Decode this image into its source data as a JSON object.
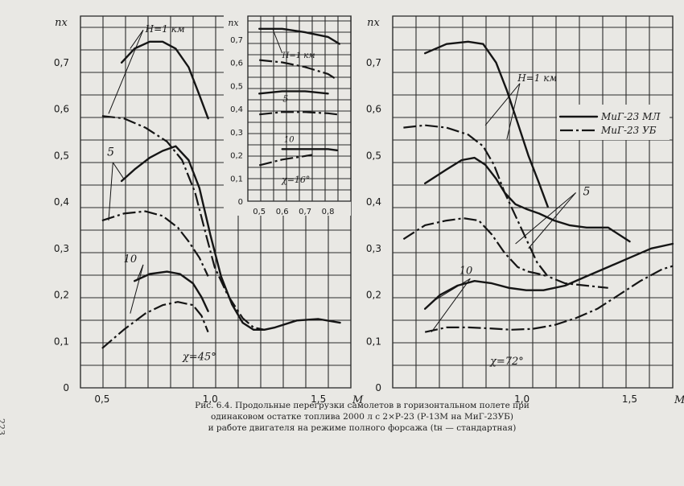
{
  "page_number": "223",
  "caption": {
    "line1": "Рис. 6.4. Продольные перегрузки самолетов в горизонтальном полете при",
    "line2": "одинаковом остатке топлива 2000 л с 2×Р-23 (Р-13М на МиГ-23УБ)",
    "line3": "и работе двигателя на режиме полного форсажа (tн — стандартная)"
  },
  "legend": {
    "solid": "МиГ-23 МЛ",
    "dashdot": "МиГ-23 УБ"
  },
  "chart_data": [
    {
      "type": "line",
      "id": "sweep45",
      "ylabel": "nx",
      "xlabel": "M",
      "annotation": "χ=45°",
      "xlim": [
        0.4,
        1.65
      ],
      "ylim": [
        0,
        0.8
      ],
      "xticks": [
        "0,5",
        "1,0",
        "1,5"
      ],
      "yticks": [
        "0",
        "0,1",
        "0,2",
        "0,3",
        "0,4",
        "0,5",
        "0,6",
        "0,7"
      ],
      "labels": {
        "h1": "H=1 км",
        "h5": "5",
        "h10": "10"
      },
      "series": [
        {
          "style": "solid",
          "x": [
            0.59,
            0.65,
            0.72,
            0.78,
            0.84,
            0.9,
            0.95,
            0.99
          ],
          "y": [
            0.7,
            0.73,
            0.745,
            0.745,
            0.73,
            0.69,
            0.63,
            0.58
          ]
        },
        {
          "style": "dashdot",
          "x": [
            0.5,
            0.6,
            0.7,
            0.8,
            0.87,
            0.93,
            0.98,
            1.02,
            1.08,
            1.15,
            1.2,
            1.25
          ],
          "y": [
            0.585,
            0.58,
            0.56,
            0.53,
            0.49,
            0.42,
            0.33,
            0.26,
            0.2,
            0.15,
            0.13,
            0.125
          ]
        },
        {
          "style": "solid",
          "x": [
            0.59,
            0.65,
            0.72,
            0.78,
            0.84,
            0.9,
            0.95,
            1.0,
            1.05,
            1.1,
            1.15,
            1.2,
            1.25,
            1.3,
            1.4,
            1.5,
            1.6
          ],
          "y": [
            0.445,
            0.47,
            0.495,
            0.51,
            0.52,
            0.49,
            0.43,
            0.33,
            0.24,
            0.18,
            0.14,
            0.125,
            0.125,
            0.13,
            0.145,
            0.148,
            0.14
          ]
        },
        {
          "style": "dashdot",
          "x": [
            0.5,
            0.6,
            0.7,
            0.78,
            0.85,
            0.9,
            0.95,
            0.99
          ],
          "y": [
            0.36,
            0.375,
            0.38,
            0.37,
            0.345,
            0.315,
            0.28,
            0.24
          ]
        },
        {
          "style": "solid",
          "x": [
            0.65,
            0.72,
            0.8,
            0.86,
            0.92,
            0.96,
            0.99
          ],
          "y": [
            0.23,
            0.245,
            0.25,
            0.245,
            0.225,
            0.195,
            0.165
          ]
        },
        {
          "style": "dashdot",
          "x": [
            0.5,
            0.6,
            0.7,
            0.78,
            0.85,
            0.92,
            0.96,
            0.99
          ],
          "y": [
            0.085,
            0.125,
            0.16,
            0.178,
            0.185,
            0.178,
            0.155,
            0.12
          ]
        }
      ]
    },
    {
      "type": "line",
      "id": "inset16",
      "ylabel": "nx",
      "annotation": "χ=16°",
      "xlim": [
        0.45,
        0.9
      ],
      "ylim": [
        0,
        0.8
      ],
      "xticks": [
        "0,5",
        "0,6",
        "0,7",
        "0,8"
      ],
      "yticks": [
        "0",
        "0,1",
        "0,2",
        "0,3",
        "0,4",
        "0,5",
        "0,6",
        "0,7"
      ],
      "labels": {
        "h1": "H=1 км",
        "h5": "5",
        "h10": "10"
      },
      "series": [
        {
          "style": "solid",
          "x": [
            0.5,
            0.6,
            0.7,
            0.8,
            0.85
          ],
          "y": [
            0.745,
            0.745,
            0.73,
            0.71,
            0.68
          ]
        },
        {
          "style": "dashdot",
          "x": [
            0.5,
            0.6,
            0.7,
            0.8,
            0.84
          ],
          "y": [
            0.61,
            0.6,
            0.58,
            0.55,
            0.525
          ]
        },
        {
          "style": "solid",
          "x": [
            0.5,
            0.6,
            0.7,
            0.8
          ],
          "y": [
            0.465,
            0.475,
            0.475,
            0.465
          ]
        },
        {
          "style": "dashdot",
          "x": [
            0.5,
            0.6,
            0.7,
            0.8,
            0.84
          ],
          "y": [
            0.375,
            0.385,
            0.385,
            0.38,
            0.375
          ]
        },
        {
          "style": "solid",
          "x": [
            0.6,
            0.7,
            0.8,
            0.84
          ],
          "y": [
            0.225,
            0.225,
            0.225,
            0.22
          ]
        },
        {
          "style": "dashdot",
          "x": [
            0.5,
            0.6,
            0.7,
            0.73
          ],
          "y": [
            0.155,
            0.18,
            0.195,
            0.2
          ]
        }
      ]
    },
    {
      "type": "line",
      "id": "sweep72",
      "ylabel": "nx",
      "xlabel": "M",
      "annotation": "χ=72°",
      "xlim": [
        0.4,
        1.7
      ],
      "ylim": [
        0,
        0.8
      ],
      "xticks": [
        "1,0",
        "1,5"
      ],
      "yticks": [
        "0",
        "0,1",
        "0,2",
        "0,3",
        "0,4",
        "0,5",
        "0,6",
        "0,7"
      ],
      "labels": {
        "h1": "H=1 км",
        "h5": "5",
        "h10": "10"
      },
      "series": [
        {
          "style": "solid",
          "x": [
            0.55,
            0.65,
            0.75,
            0.82,
            0.88,
            0.93,
            0.98,
            1.03,
            1.08,
            1.12
          ],
          "y": [
            0.72,
            0.74,
            0.745,
            0.74,
            0.7,
            0.64,
            0.57,
            0.5,
            0.44,
            0.39
          ]
        },
        {
          "style": "dashdot",
          "x": [
            0.45,
            0.55,
            0.65,
            0.75,
            0.82,
            0.87,
            0.92,
            0.97,
            1.02,
            1.07,
            1.12,
            1.2,
            1.3,
            1.4
          ],
          "y": [
            0.56,
            0.565,
            0.56,
            0.545,
            0.52,
            0.48,
            0.42,
            0.37,
            0.32,
            0.27,
            0.24,
            0.225,
            0.22,
            0.215
          ]
        },
        {
          "style": "solid",
          "x": [
            0.55,
            0.65,
            0.72,
            0.78,
            0.83,
            0.88,
            0.92,
            0.97,
            1.02,
            1.08,
            1.15,
            1.22,
            1.3,
            1.4,
            1.5
          ],
          "y": [
            0.44,
            0.47,
            0.49,
            0.495,
            0.48,
            0.45,
            0.42,
            0.395,
            0.385,
            0.375,
            0.36,
            0.35,
            0.345,
            0.345,
            0.315
          ]
        },
        {
          "style": "dashdot",
          "x": [
            0.45,
            0.55,
            0.65,
            0.73,
            0.8,
            0.86,
            0.92,
            0.98,
            1.03,
            1.08,
            1.12
          ],
          "y": [
            0.32,
            0.35,
            0.36,
            0.365,
            0.36,
            0.33,
            0.29,
            0.26,
            0.25,
            0.245,
            0.24
          ]
        },
        {
          "style": "solid",
          "x": [
            0.55,
            0.62,
            0.7,
            0.78,
            0.86,
            0.94,
            1.02,
            1.1,
            1.2,
            1.3,
            1.4,
            1.5,
            1.6,
            1.7
          ],
          "y": [
            0.17,
            0.2,
            0.22,
            0.23,
            0.225,
            0.215,
            0.21,
            0.21,
            0.22,
            0.24,
            0.26,
            0.28,
            0.3,
            0.31
          ]
        },
        {
          "style": "dashdot",
          "x": [
            0.55,
            0.65,
            0.75,
            0.85,
            0.95,
            1.05,
            1.15,
            1.25,
            1.35,
            1.45,
            1.55,
            1.65,
            1.7
          ],
          "y": [
            0.12,
            0.13,
            0.13,
            0.128,
            0.125,
            0.127,
            0.135,
            0.15,
            0.17,
            0.2,
            0.23,
            0.255,
            0.262
          ]
        }
      ]
    }
  ]
}
